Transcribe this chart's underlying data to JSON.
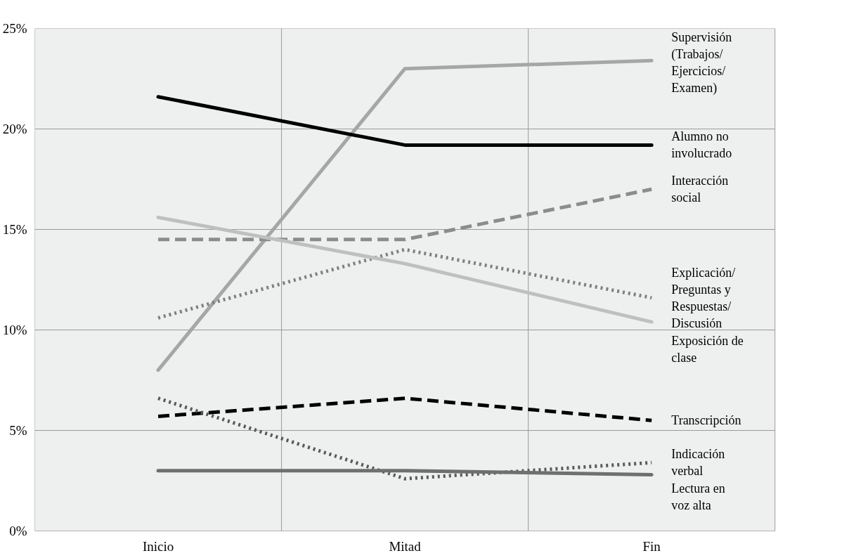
{
  "chart_data": {
    "type": "line",
    "categories": [
      "Inicio",
      "Mitad",
      "Fin"
    ],
    "ylim": [
      0,
      25
    ],
    "yticks": [
      {
        "value": 0,
        "label": "0%"
      },
      {
        "value": 5,
        "label": "5%"
      },
      {
        "value": 10,
        "label": "10%"
      },
      {
        "value": 15,
        "label": "15%"
      },
      {
        "value": 20,
        "label": "20%"
      },
      {
        "value": 25,
        "label": "25%"
      }
    ],
    "grid": true,
    "legend": false,
    "marker": "none",
    "series": [
      {
        "name": "Supervisión (Trabajos/ Ejercicios/ Examen)",
        "color": "#a6a6a6",
        "line_style": "solid",
        "values": [
          8.0,
          23.0,
          23.4
        ]
      },
      {
        "name": "Alumno no involucrado",
        "color": "#000000",
        "line_style": "solid",
        "values": [
          21.6,
          19.2,
          19.2
        ]
      },
      {
        "name": "Interacción social",
        "color": "#8c8c8c",
        "line_style": "dashed",
        "values": [
          14.5,
          14.5,
          17.0
        ]
      },
      {
        "name": "Explicación/ Preguntas y Respuestas/ Discusión",
        "color": "#7f7f7f",
        "line_style": "dotted",
        "values": [
          10.6,
          14.0,
          11.6
        ]
      },
      {
        "name": "Exposición de clase",
        "color": "#bfbfbf",
        "line_style": "solid",
        "values": [
          15.6,
          13.3,
          10.4
        ]
      },
      {
        "name": "Transcripción",
        "color": "#000000",
        "line_style": "dashed",
        "values": [
          5.7,
          6.6,
          5.5
        ]
      },
      {
        "name": "Indicación verbal",
        "color": "#595959",
        "line_style": "dotted",
        "values": [
          6.6,
          2.6,
          3.4
        ]
      },
      {
        "name": "Lectura en voz alta",
        "color": "#6f6f6f",
        "line_style": "solid",
        "values": [
          3.0,
          3.0,
          2.8
        ]
      }
    ]
  }
}
